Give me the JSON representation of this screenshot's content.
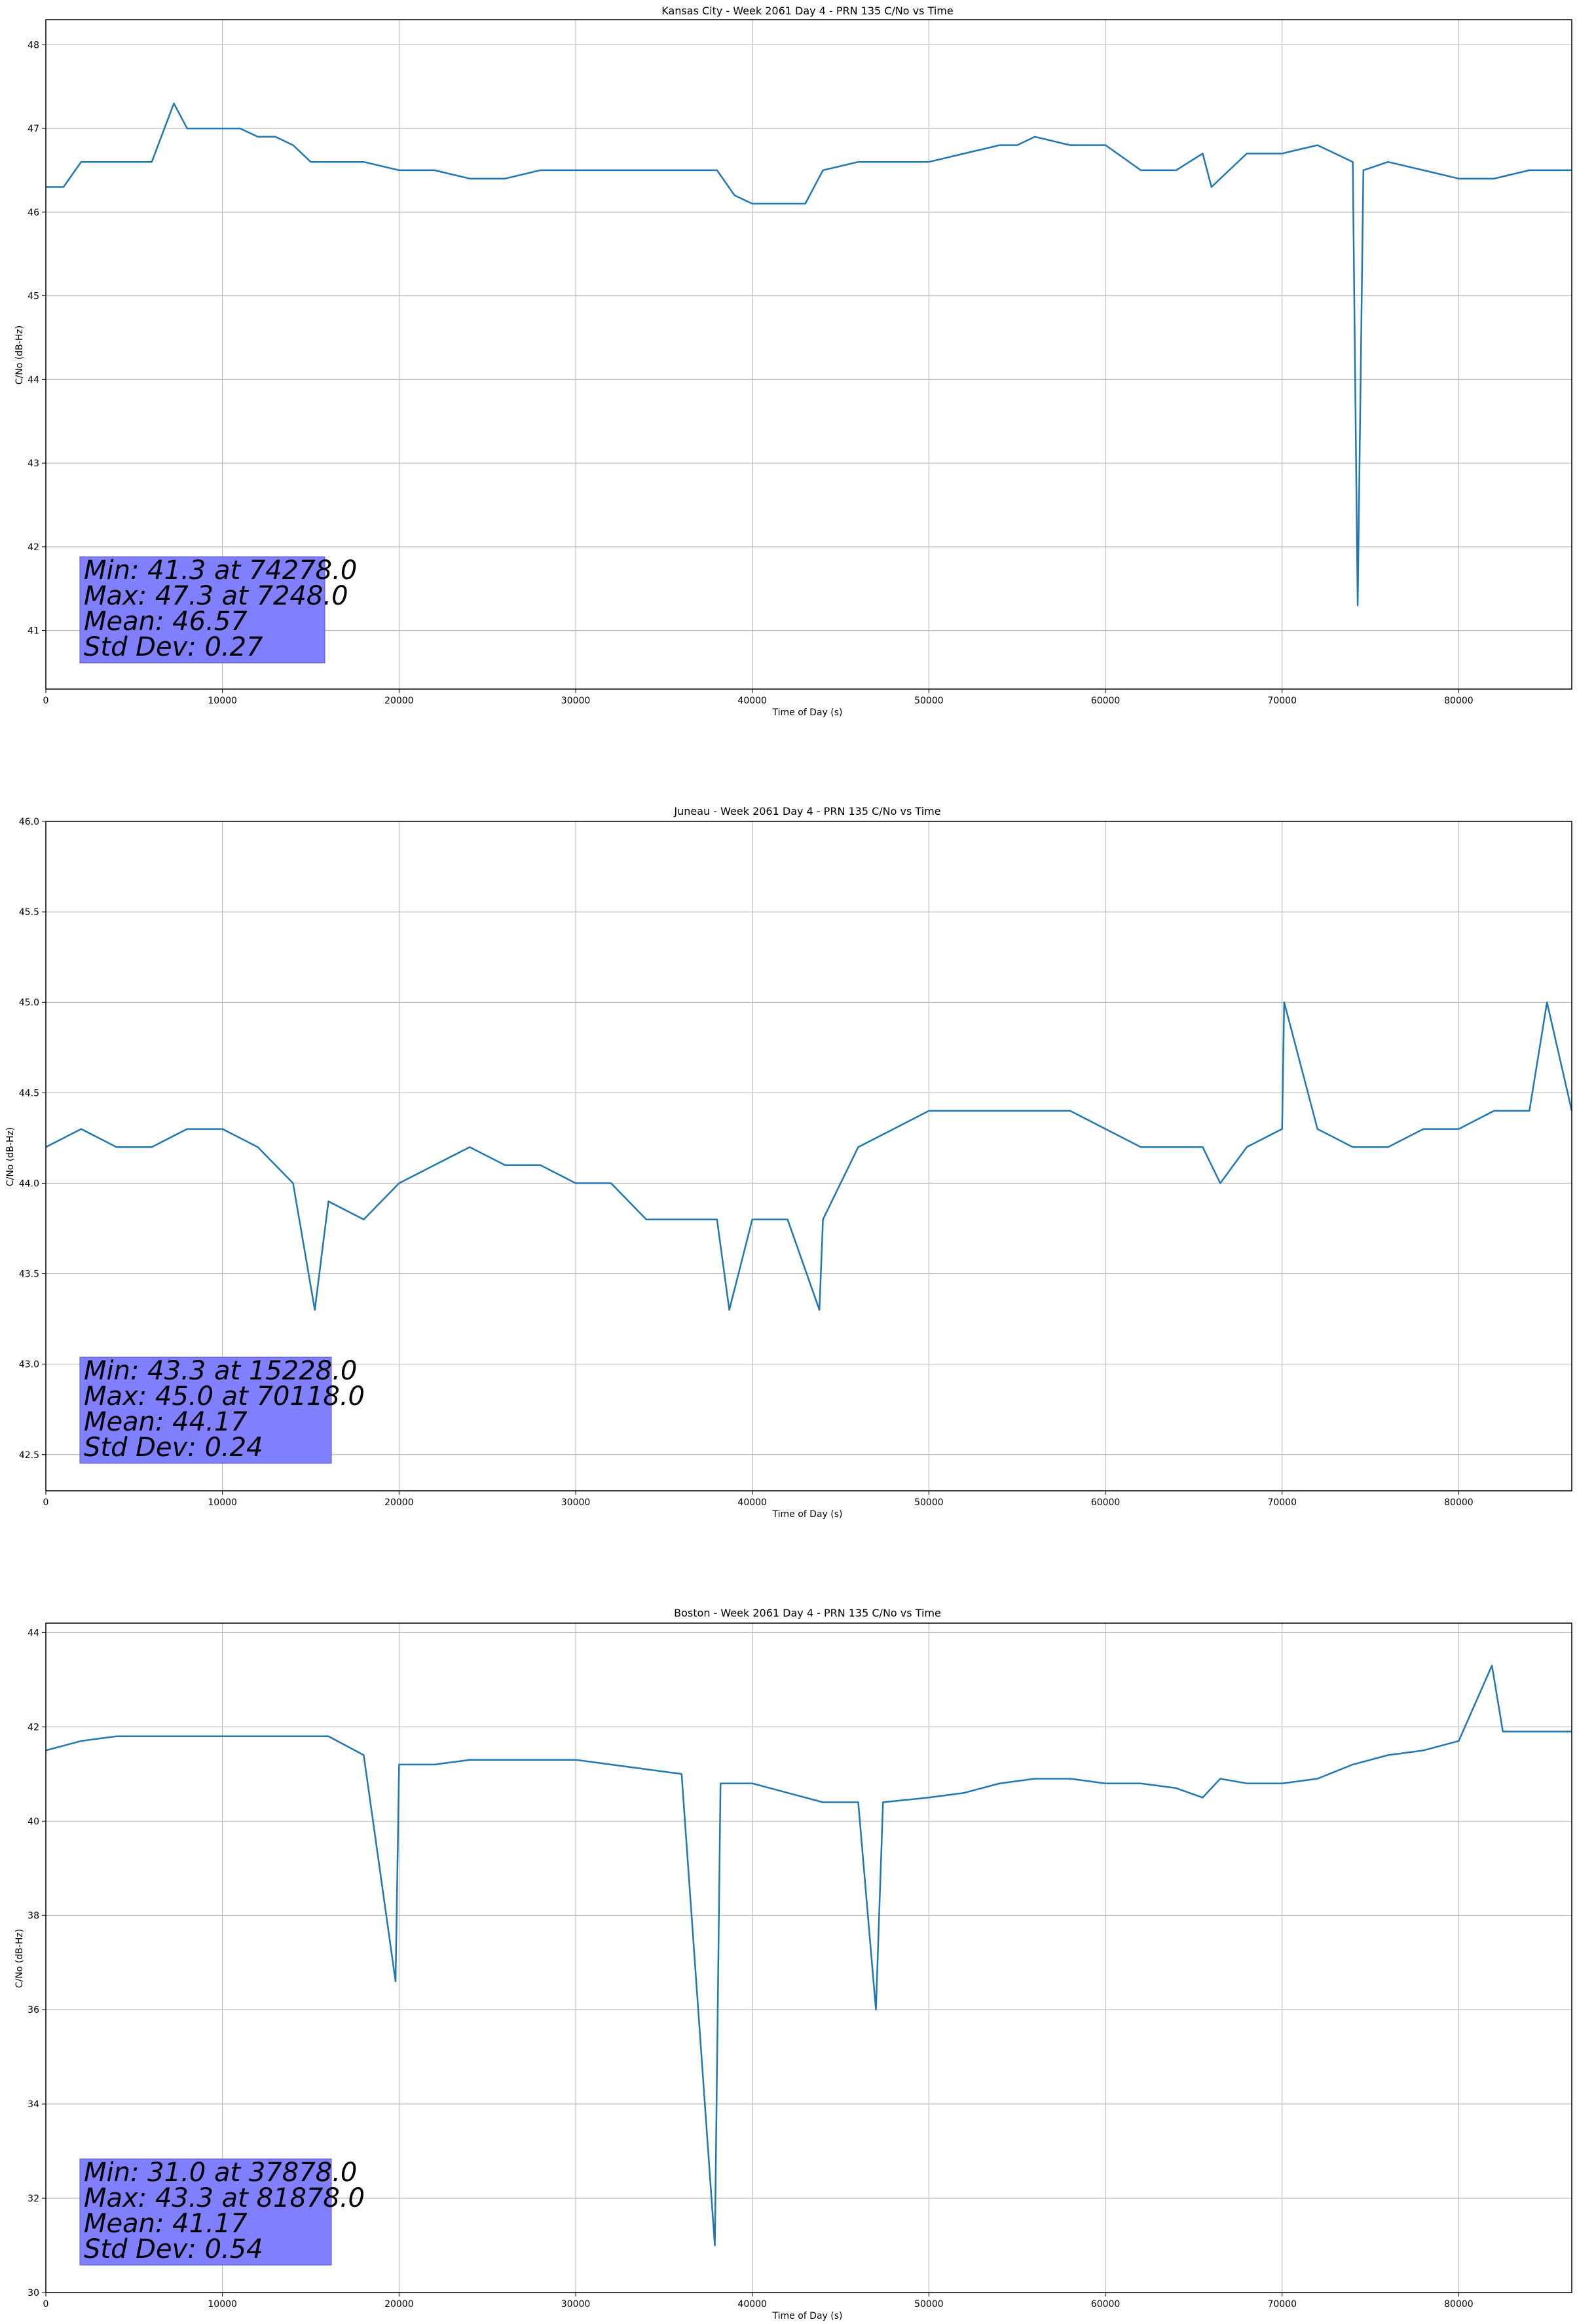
{
  "chart_data": [
    {
      "type": "line",
      "title": "Kansas City - Week 2061 Day 4 - PRN 135 C/No vs Time",
      "xlabel": "Time of Day (s)",
      "ylabel": "C/No (dB-Hz)",
      "xlim": [
        0,
        86400
      ],
      "ylim": [
        40.3,
        48.3
      ],
      "xticks": [
        "0",
        "10000",
        "20000",
        "30000",
        "40000",
        "50000",
        "60000",
        "70000",
        "80000"
      ],
      "yticks": [
        "41",
        "42",
        "43",
        "44",
        "45",
        "46",
        "47",
        "48"
      ],
      "grid": true,
      "series_color": "#1f77b4",
      "stats_box_color": "#8080ff",
      "stats": [
        "Min: 41.3 at 74278.0",
        "Max: 47.3 at 7248.0",
        "Mean: 46.57",
        "Std Dev: 0.27"
      ],
      "series": [
        {
          "x": [
            0,
            1000,
            2000,
            3000,
            4000,
            5000,
            6000,
            7248,
            8000,
            9000,
            10000,
            11000,
            12000,
            13000,
            14000,
            15000,
            16000,
            18000,
            20000,
            22000,
            24000,
            26000,
            28000,
            30000,
            32000,
            34000,
            36000,
            38000,
            39000,
            40000,
            42000,
            43000,
            44000,
            46000,
            48000,
            50000,
            52000,
            54000,
            55000,
            56000,
            58000,
            60000,
            62000,
            64000,
            65500,
            66000,
            68000,
            70000,
            72000,
            74000,
            74278,
            74600,
            76000,
            78000,
            80000,
            82000,
            84000,
            86400
          ],
          "y": [
            46.3,
            46.3,
            46.6,
            46.6,
            46.6,
            46.6,
            46.6,
            47.3,
            47.0,
            47.0,
            47.0,
            47.0,
            46.9,
            46.9,
            46.8,
            46.6,
            46.6,
            46.6,
            46.5,
            46.5,
            46.4,
            46.4,
            46.5,
            46.5,
            46.5,
            46.5,
            46.5,
            46.5,
            46.2,
            46.1,
            46.1,
            46.1,
            46.5,
            46.6,
            46.6,
            46.6,
            46.7,
            46.8,
            46.8,
            46.9,
            46.8,
            46.8,
            46.5,
            46.5,
            46.7,
            46.3,
            46.7,
            46.7,
            46.8,
            46.6,
            41.3,
            46.5,
            46.6,
            46.5,
            46.4,
            46.4,
            46.5,
            46.5
          ]
        }
      ]
    },
    {
      "type": "line",
      "title": "Juneau - Week 2061 Day 4 - PRN 135 C/No vs Time",
      "xlabel": "Time of Day (s)",
      "ylabel": "C/No (dB-Hz)",
      "xlim": [
        0,
        86400
      ],
      "ylim": [
        42.3,
        46.0
      ],
      "xticks": [
        "0",
        "10000",
        "20000",
        "30000",
        "40000",
        "50000",
        "60000",
        "70000",
        "80000"
      ],
      "yticks": [
        "42.5",
        "43.0",
        "43.5",
        "44.0",
        "44.5",
        "45.0",
        "45.5",
        "46.0"
      ],
      "grid": true,
      "series_color": "#1f77b4",
      "stats_box_color": "#8080ff",
      "stats": [
        "Min: 43.3 at 15228.0",
        "Max: 45.0 at 70118.0",
        "Mean: 44.17",
        "Std Dev: 0.24"
      ],
      "series": [
        {
          "x": [
            0,
            2000,
            4000,
            6000,
            8000,
            10000,
            12000,
            14000,
            15228,
            16000,
            18000,
            20000,
            22000,
            24000,
            26000,
            28000,
            30000,
            32000,
            34000,
            36000,
            38000,
            38700,
            40000,
            42000,
            43800,
            44000,
            46000,
            48000,
            50000,
            52000,
            54000,
            56000,
            58000,
            60000,
            62000,
            64000,
            65500,
            66500,
            68000,
            70000,
            70118,
            72000,
            74000,
            76000,
            78000,
            80000,
            82000,
            84000,
            85000,
            86400
          ],
          "y": [
            44.2,
            44.3,
            44.2,
            44.2,
            44.3,
            44.3,
            44.2,
            44.0,
            43.3,
            43.9,
            43.8,
            44.0,
            44.1,
            44.2,
            44.1,
            44.1,
            44.0,
            44.0,
            43.8,
            43.8,
            43.8,
            43.3,
            43.8,
            43.8,
            43.3,
            43.8,
            44.2,
            44.3,
            44.4,
            44.4,
            44.4,
            44.4,
            44.4,
            44.3,
            44.2,
            44.2,
            44.2,
            44.0,
            44.2,
            44.3,
            45.0,
            44.3,
            44.2,
            44.2,
            44.3,
            44.3,
            44.4,
            44.4,
            45.0,
            44.4
          ]
        }
      ]
    },
    {
      "type": "line",
      "title": "Boston - Week 2061 Day 4 - PRN 135 C/No vs Time",
      "xlabel": "Time of Day (s)",
      "ylabel": "C/No (dB-Hz)",
      "xlim": [
        0,
        86400
      ],
      "ylim": [
        30.0,
        44.2
      ],
      "xticks": [
        "0",
        "10000",
        "20000",
        "30000",
        "40000",
        "50000",
        "60000",
        "70000",
        "80000"
      ],
      "yticks": [
        "30",
        "32",
        "34",
        "36",
        "38",
        "40",
        "42",
        "44"
      ],
      "grid": true,
      "series_color": "#1f77b4",
      "stats_box_color": "#8080ff",
      "stats": [
        "Min: 31.0 at 37878.0",
        "Max: 43.3 at 81878.0",
        "Mean: 41.17",
        "Std Dev: 0.54"
      ],
      "series": [
        {
          "x": [
            0,
            2000,
            4000,
            6000,
            8000,
            10000,
            12000,
            14000,
            16000,
            18000,
            19800,
            20000,
            22000,
            24000,
            26000,
            28000,
            30000,
            32000,
            34000,
            36000,
            37878,
            38200,
            40000,
            42000,
            44000,
            46000,
            47000,
            47400,
            50000,
            52000,
            54000,
            56000,
            58000,
            60000,
            62000,
            64000,
            65500,
            66500,
            68000,
            70000,
            72000,
            74000,
            76000,
            78000,
            80000,
            81878,
            82500,
            84000,
            86400
          ],
          "y": [
            41.5,
            41.7,
            41.8,
            41.8,
            41.8,
            41.8,
            41.8,
            41.8,
            41.8,
            41.4,
            36.6,
            41.2,
            41.2,
            41.3,
            41.3,
            41.3,
            41.3,
            41.2,
            41.1,
            41.0,
            31.0,
            40.8,
            40.8,
            40.6,
            40.4,
            40.4,
            36.0,
            40.4,
            40.5,
            40.6,
            40.8,
            40.9,
            40.9,
            40.8,
            40.8,
            40.7,
            40.5,
            40.9,
            40.8,
            40.8,
            40.9,
            41.2,
            41.4,
            41.5,
            41.7,
            43.3,
            41.9,
            41.9,
            41.9
          ]
        }
      ]
    }
  ]
}
